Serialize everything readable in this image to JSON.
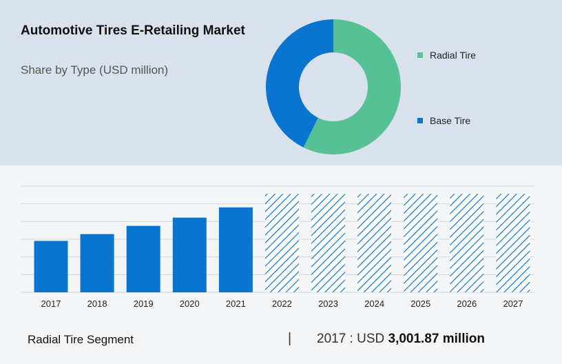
{
  "header": {
    "title": "Automotive Tires E-Retailing Market",
    "subtitle": "Share by Type (USD million)"
  },
  "colors": {
    "radial": "#57c196",
    "base": "#0a74d1",
    "bar": "#0a74d1",
    "gridline": "#d3d6db"
  },
  "chart_data": [
    {
      "type": "pie",
      "donut": true,
      "series": [
        {
          "name": "Radial Tire",
          "value": 57.3
        },
        {
          "name": "Base Tire",
          "value": 42.7
        }
      ],
      "legend_placement": "right"
    },
    {
      "type": "bar",
      "categories": [
        "2017",
        "2018",
        "2019",
        "2020",
        "2021",
        "2022",
        "2023",
        "2024",
        "2025",
        "2026",
        "2027"
      ],
      "values": [
        3001.87,
        3400,
        3880,
        4360,
        4960,
        5750,
        5750,
        5750,
        5750,
        5750,
        5750
      ],
      "forecast_from": "2022",
      "ylim": [
        0,
        6200
      ],
      "grid": true
    }
  ],
  "footer": {
    "segment_label": "Radial Tire Segment",
    "separator": "|",
    "year_prefix": "2017 : USD",
    "value": "3,001.87 million"
  }
}
